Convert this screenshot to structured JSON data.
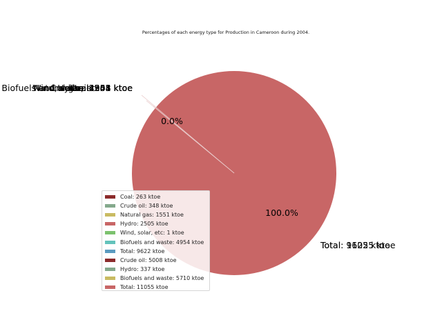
{
  "chart_data": {
    "type": "pie",
    "title": "Percentages of each energy type for Production in Cameroon during 2004.",
    "slices": [
      {
        "label": "Coal: 263 ktoe",
        "value": 263,
        "color": "#8b2b2b"
      },
      {
        "label": "Crude oil: 348 ktoe",
        "value": 348,
        "color": "#84a98c"
      },
      {
        "label": "Natural gas: 1551 ktoe",
        "value": 1551,
        "color": "#c9bb62"
      },
      {
        "label": "Hydro: 2505 ktoe",
        "value": 2505,
        "color": "#c86666"
      },
      {
        "label": "Wind, solar, etc: 1 ktoe",
        "value": 1,
        "color": "#7cc26e"
      },
      {
        "label": "Biofuels and waste: 4954 ktoe",
        "value": 4954,
        "color": "#63c3bb"
      },
      {
        "label": "Total: 9622 ktoe",
        "value": 9622,
        "color": "#5b9bc0"
      },
      {
        "label": "Crude oil: 5008 ktoe",
        "value": 5008,
        "color": "#8b2b2b"
      },
      {
        "label": "Hydro: 337 ktoe",
        "value": 337,
        "color": "#84a98c"
      },
      {
        "label": "Biofuels and waste: 5710 ktoe",
        "value": 5710,
        "color": "#c9bb62"
      },
      {
        "label": "Total: 11055 ktoe",
        "value": 11055,
        "color": "#c86666"
      }
    ],
    "outer_labels": {
      "upper_left": [
        "Biofuels and waste: 4954 ktoe",
        "Natural gas: 1551 ktoe",
        "Wind, solar, etc: 1 ktoe",
        "Hydro: 2505 ktoe",
        "Crude oil: 348 ktoe",
        "Coal: 263 ktoe"
      ],
      "lower_right": [
        "Total: 9622 ktoe",
        "Total: 11055 ktoe"
      ]
    },
    "pct_labels": [
      "0.0%",
      "100.0%"
    ],
    "legend_position": "lower-left"
  }
}
